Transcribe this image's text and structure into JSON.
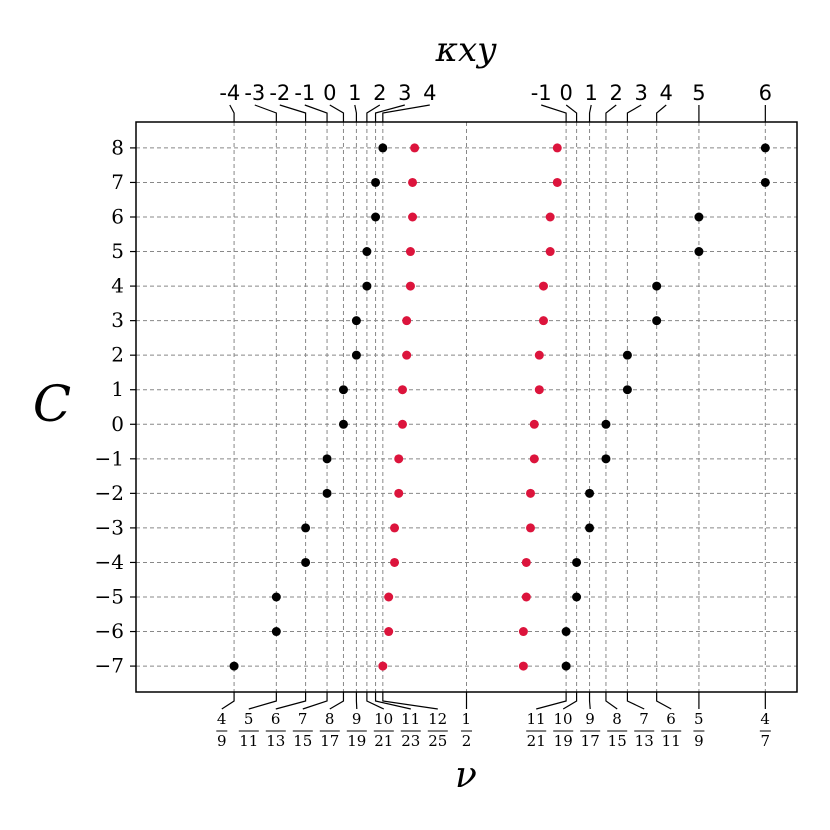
{
  "chart_data": {
    "type": "scatter",
    "xlabel": "ν",
    "ylabel": "C",
    "x2label": "κxy",
    "xlim": [
      0.421,
      0.579
    ],
    "ylim": [
      -7.75,
      8.75
    ],
    "xticks": [
      {
        "value": 0.444444,
        "label": "4/9"
      },
      {
        "value": 0.454545,
        "label": "5/11"
      },
      {
        "value": 0.461538,
        "label": "6/13"
      },
      {
        "value": 0.466667,
        "label": "7/15"
      },
      {
        "value": 0.470588,
        "label": "8/17"
      },
      {
        "value": 0.473684,
        "label": "9/19"
      },
      {
        "value": 0.47619,
        "label": "10/21"
      },
      {
        "value": 0.478261,
        "label": "11/23"
      },
      {
        "value": 0.48,
        "label": "12/25"
      },
      {
        "value": 0.5,
        "label": "1/2"
      },
      {
        "value": 0.52381,
        "label": "11/21"
      },
      {
        "value": 0.526316,
        "label": "10/19"
      },
      {
        "value": 0.529412,
        "label": "9/17"
      },
      {
        "value": 0.533333,
        "label": "8/15"
      },
      {
        "value": 0.538462,
        "label": "7/13"
      },
      {
        "value": 0.545455,
        "label": "6/11"
      },
      {
        "value": 0.555556,
        "label": "5/9"
      },
      {
        "value": 0.571429,
        "label": "4/7"
      }
    ],
    "x2ticks": [
      {
        "value": 0.444444,
        "label": "-4"
      },
      {
        "value": 0.454545,
        "label": "-3"
      },
      {
        "value": 0.461538,
        "label": "-2"
      },
      {
        "value": 0.466667,
        "label": "-1"
      },
      {
        "value": 0.470588,
        "label": "0"
      },
      {
        "value": 0.473684,
        "label": "1"
      },
      {
        "value": 0.47619,
        "label": "2"
      },
      {
        "value": 0.478261,
        "label": "3"
      },
      {
        "value": 0.48,
        "label": "4"
      },
      {
        "value": 0.52381,
        "label": "-1"
      },
      {
        "value": 0.526316,
        "label": "0"
      },
      {
        "value": 0.529412,
        "label": "1"
      },
      {
        "value": 0.533333,
        "label": "2"
      },
      {
        "value": 0.538462,
        "label": "3"
      },
      {
        "value": 0.545455,
        "label": "4"
      },
      {
        "value": 0.555556,
        "label": "5"
      },
      {
        "value": 0.571429,
        "label": "6"
      }
    ],
    "yticks": [
      {
        "value": -7,
        "label": "−7"
      },
      {
        "value": -6,
        "label": "−6"
      },
      {
        "value": -5,
        "label": "−5"
      },
      {
        "value": -4,
        "label": "−4"
      },
      {
        "value": -3,
        "label": "−3"
      },
      {
        "value": -2,
        "label": "−2"
      },
      {
        "value": -1,
        "label": "−1"
      },
      0,
      1,
      2,
      3,
      4,
      5,
      6,
      7,
      8
    ],
    "grid": true,
    "series": [
      {
        "color": "#000000",
        "x": [
          0.48,
          0.478261,
          0.478261,
          0.47619,
          0.47619,
          0.473684,
          0.473684,
          0.470588,
          0.470588,
          0.466667,
          0.466667,
          0.461538,
          0.461538,
          0.454545,
          0.454545,
          0.444444,
          0.571429,
          0.571429,
          0.555556,
          0.555556,
          0.545455,
          0.545455,
          0.538462,
          0.538462,
          0.533333,
          0.533333,
          0.529412,
          0.529412,
          0.526316,
          0.526316,
          0.52381,
          0.52381
        ],
        "values": [
          8,
          7,
          6,
          5,
          4,
          3,
          2,
          1,
          0,
          -1,
          -2,
          -3,
          -4,
          -5,
          -6,
          -7,
          8,
          7,
          6,
          5,
          4,
          3,
          2,
          1,
          0,
          -1,
          -2,
          -3,
          -4,
          -5,
          -6,
          -7
        ]
      },
      {
        "color": "#dc143c",
        "x": [
          0.4876,
          0.4871,
          0.4871,
          0.4866,
          0.4866,
          0.4857,
          0.4857,
          0.4847,
          0.4847,
          0.4838,
          0.4838,
          0.4828,
          0.4828,
          0.4814,
          0.4814,
          0.48,
          0.5217,
          0.5217,
          0.52,
          0.52,
          0.5184,
          0.5184,
          0.5174,
          0.5174,
          0.5162,
          0.5162,
          0.5153,
          0.5153,
          0.5143,
          0.5143,
          0.5136,
          0.5136
        ],
        "values": [
          8,
          7,
          6,
          5,
          4,
          3,
          2,
          1,
          0,
          -1,
          -2,
          -3,
          -4,
          -5,
          -6,
          -7,
          8,
          7,
          6,
          5,
          4,
          3,
          2,
          1,
          0,
          -1,
          -2,
          -3,
          -4,
          -5,
          -6,
          -7
        ]
      }
    ]
  }
}
